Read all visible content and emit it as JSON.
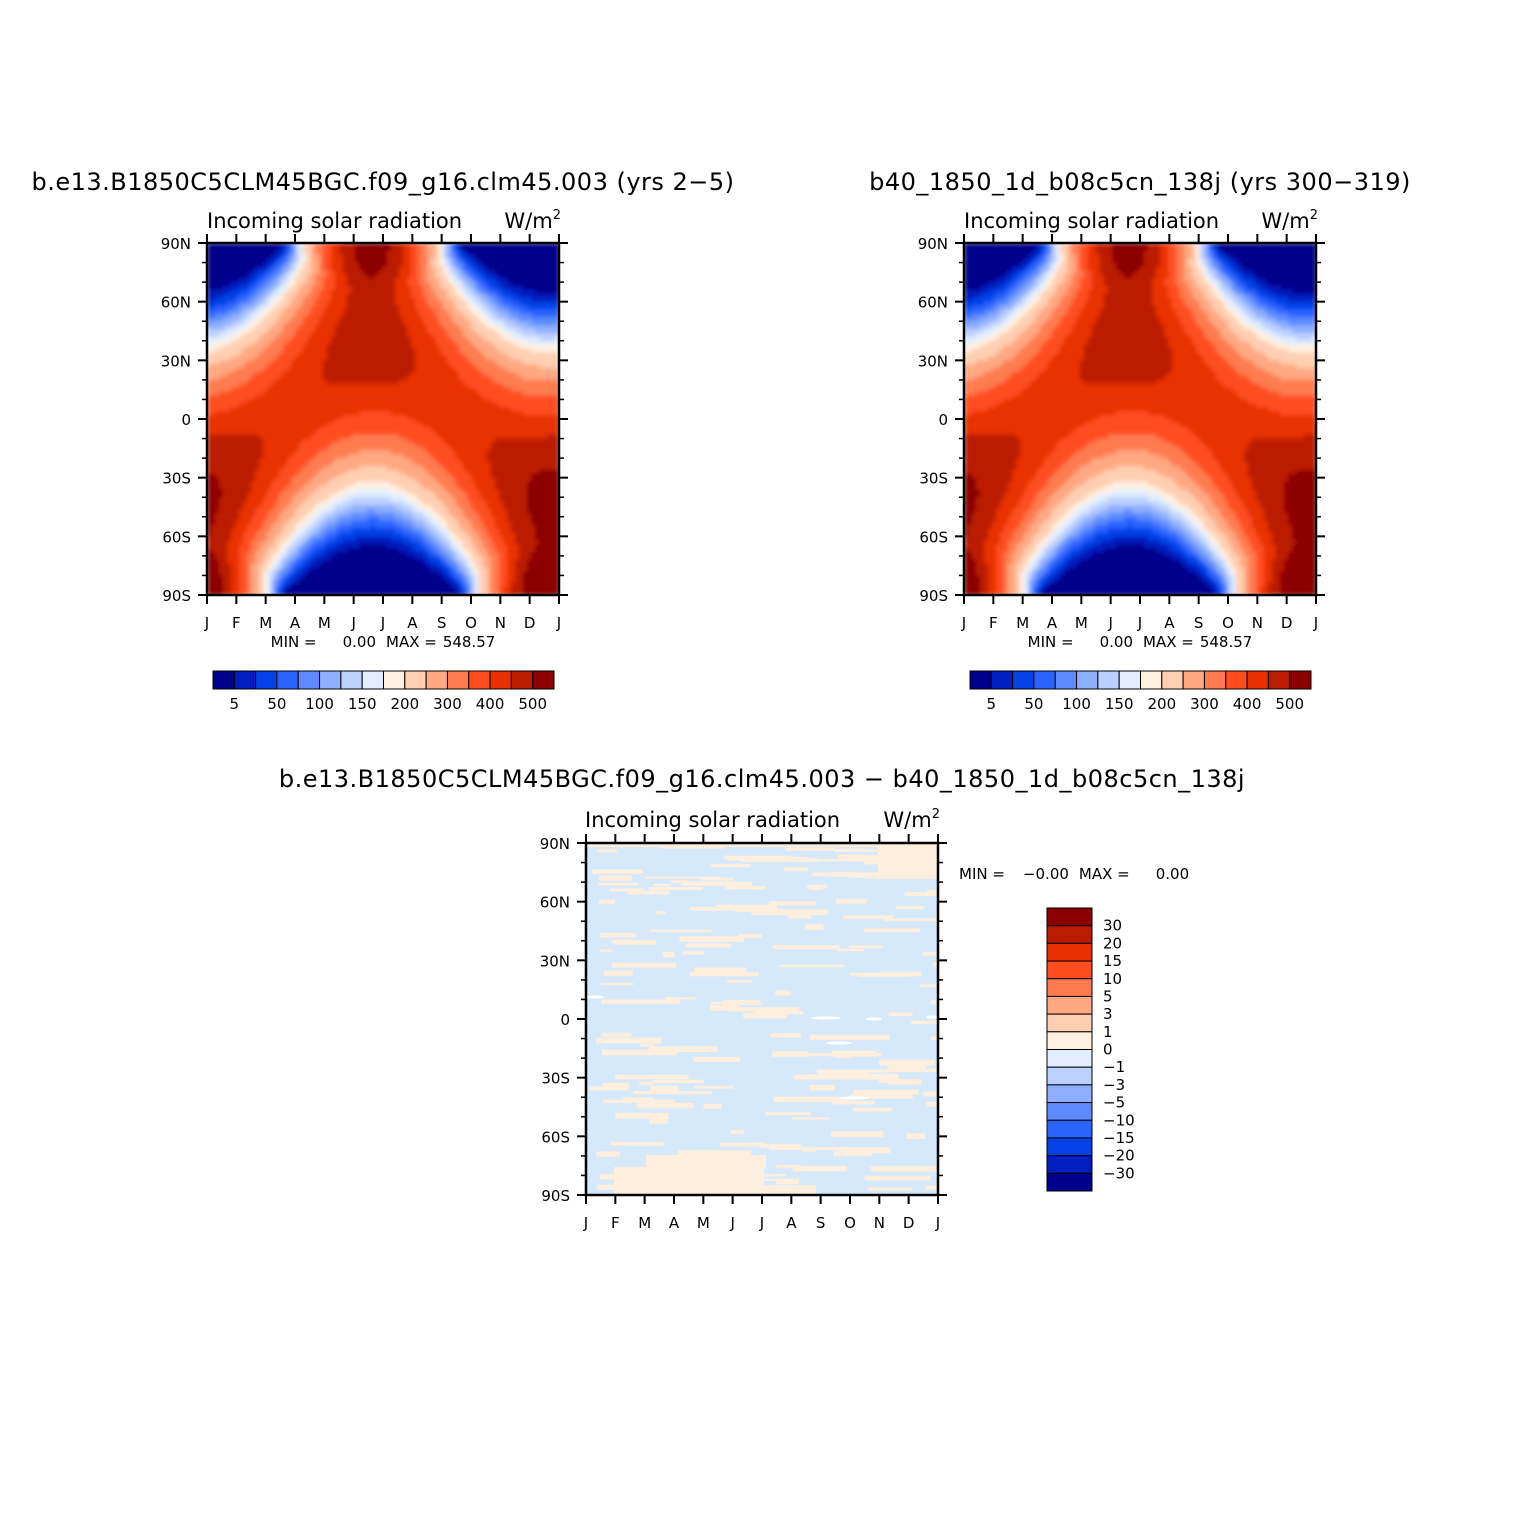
{
  "chart_data": [
    {
      "type": "heatmap",
      "title": "b.e13.B1850C5CLM45BGC.f09_g16.clm45.003 (yrs 2−5)",
      "variable": "Incoming solar radiation",
      "units": "W/m",
      "units_sup": "2",
      "x_ticks": [
        "J",
        "F",
        "M",
        "A",
        "M",
        "J",
        "J",
        "A",
        "S",
        "O",
        "N",
        "D",
        "J"
      ],
      "y_ticks": [
        "90N",
        "60N",
        "30N",
        "0",
        "30S",
        "60S",
        "90S"
      ],
      "min_label": "MIN =",
      "min_value": "0.00",
      "max_label": "MAX =",
      "max_value": "548.57",
      "colorbar_labels": [
        "5",
        "50",
        "100",
        "150",
        "200",
        "300",
        "400",
        "500"
      ],
      "colors": [
        "#00008c",
        "#001dbf",
        "#0542e6",
        "#2b63ff",
        "#5d8bff",
        "#8eafff",
        "#bcd0ff",
        "#e2eeff",
        "#fff0e0",
        "#ffcfb2",
        "#ffa882",
        "#ff7b4f",
        "#ff4d20",
        "#e83000",
        "#bb1c00",
        "#8c0000"
      ]
    },
    {
      "type": "heatmap",
      "title": "b40_1850_1d_b08c5cn_138j (yrs 300−319)",
      "variable": "Incoming solar radiation",
      "units": "W/m",
      "units_sup": "2",
      "x_ticks": [
        "J",
        "F",
        "M",
        "A",
        "M",
        "J",
        "J",
        "A",
        "S",
        "O",
        "N",
        "D",
        "J"
      ],
      "y_ticks": [
        "90N",
        "60N",
        "30N",
        "0",
        "30S",
        "60S",
        "90S"
      ],
      "min_label": "MIN =",
      "min_value": "0.00",
      "max_label": "MAX =",
      "max_value": "548.57",
      "colorbar_labels": [
        "5",
        "50",
        "100",
        "150",
        "200",
        "300",
        "400",
        "500"
      ],
      "colors": [
        "#00008c",
        "#001dbf",
        "#0542e6",
        "#2b63ff",
        "#5d8bff",
        "#8eafff",
        "#bcd0ff",
        "#e2eeff",
        "#fff0e0",
        "#ffcfb2",
        "#ffa882",
        "#ff7b4f",
        "#ff4d20",
        "#e83000",
        "#bb1c00",
        "#8c0000"
      ]
    },
    {
      "type": "heatmap",
      "title": "b.e13.B1850C5CLM45BGC.f09_g16.clm45.003 − b40_1850_1d_b08c5cn_138j",
      "variable": "Incoming solar radiation",
      "units": "W/m",
      "units_sup": "2",
      "x_ticks": [
        "J",
        "F",
        "M",
        "A",
        "M",
        "J",
        "J",
        "A",
        "S",
        "O",
        "N",
        "D",
        "J"
      ],
      "y_ticks": [
        "90N",
        "60N",
        "30N",
        "0",
        "30S",
        "60S",
        "90S"
      ],
      "min_label": "MIN =",
      "min_value": "−0.00",
      "max_label": "MAX =",
      "max_value": "0.00",
      "colorbar_labels": [
        "30",
        "20",
        "15",
        "10",
        "5",
        "3",
        "1",
        "0",
        "−1",
        "−3",
        "−5",
        "−10",
        "−15",
        "−20",
        "−30"
      ],
      "colors": [
        "#8c0000",
        "#bb1c00",
        "#e83000",
        "#ff4d20",
        "#ff7b4f",
        "#ffa882",
        "#ffcfb2",
        "#fff0e0",
        "#e2eeff",
        "#bcd0ff",
        "#8eafff",
        "#5d8bff",
        "#2b63ff",
        "#0542e6",
        "#001dbf",
        "#00008c"
      ],
      "field_colors": {
        "base": "#d6e9fb",
        "positive": "#feeede",
        "zero": "#ffffff"
      }
    }
  ]
}
